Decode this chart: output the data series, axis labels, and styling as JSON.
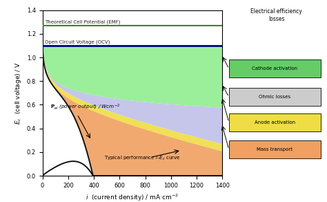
{
  "emf": 1.27,
  "ocv": 1.1,
  "i_max": 1400,
  "ylim": [
    0.0,
    1.4
  ],
  "xlim": [
    0,
    1400
  ],
  "emf_color": "#2e8b2e",
  "ocv_color": "#00008b",
  "curve_color": "#111111",
  "fill_cathode_color": "#90ee90",
  "fill_ohmic_color": "#c0c0e8",
  "fill_anode_color": "#eedd44",
  "fill_mass_color": "#f0a060",
  "legend_cathode_color": "#66cc66",
  "legend_ohmic_color": "#cccccc",
  "legend_anode_color": "#eedd44",
  "legend_mass_color": "#f0a060",
  "bg_color": "#ffffff",
  "xticks": [
    0,
    200,
    400,
    600,
    800,
    1000,
    1200,
    1400
  ],
  "yticks": [
    0.0,
    0.2,
    0.4,
    0.6,
    0.8,
    1.0,
    1.2,
    1.4
  ]
}
